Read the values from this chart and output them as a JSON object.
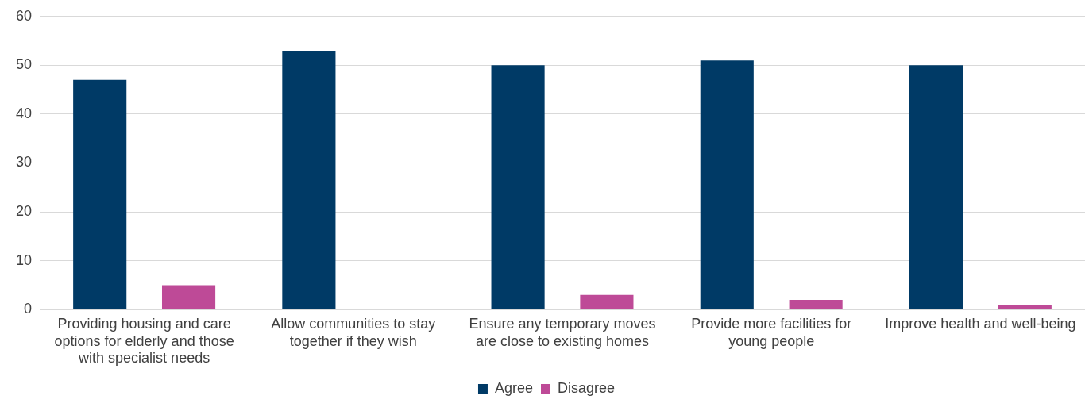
{
  "chart_data": {
    "type": "bar",
    "categories": [
      "Providing housing and care options for elderly and those with specialist needs",
      "Allow communities to stay together if they wish",
      "Ensure any temporary moves are close to existing homes",
      "Provide more facilities for young people",
      "Improve health and well-being"
    ],
    "series": [
      {
        "name": "Agree",
        "color": "#003a66",
        "values": [
          47,
          53,
          50,
          51,
          50
        ]
      },
      {
        "name": "Disagree",
        "color": "#be4a97",
        "values": [
          5,
          0,
          3,
          2,
          1
        ]
      }
    ],
    "ylim": [
      0,
      60
    ],
    "yticks": [
      0,
      10,
      20,
      30,
      40,
      50,
      60
    ],
    "grid": "y",
    "legend": "bottom"
  }
}
